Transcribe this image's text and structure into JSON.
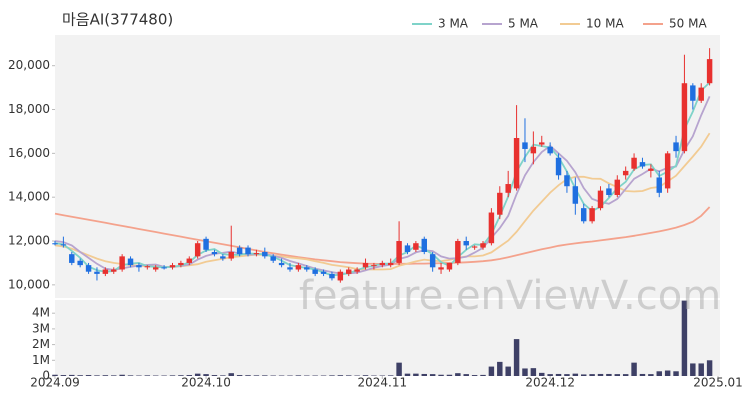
{
  "chart_data": {
    "type": "candlestick",
    "title": "마음AI(377480)",
    "x": [
      0,
      1,
      2,
      3,
      4,
      5,
      6,
      7,
      8,
      9,
      10,
      11,
      12,
      13,
      14,
      15,
      16,
      17,
      18,
      19,
      20,
      21,
      22,
      23,
      24,
      25,
      26,
      27,
      28,
      29,
      30,
      31,
      32,
      33,
      34,
      35,
      36,
      37,
      38,
      39,
      40,
      41,
      42,
      43,
      44,
      45,
      46,
      47,
      48,
      49,
      50,
      51,
      52,
      53,
      54,
      55,
      56,
      57,
      58,
      59,
      60,
      61,
      62,
      63,
      64,
      65,
      66,
      67,
      68,
      69,
      70,
      71,
      72,
      73,
      74,
      75,
      76,
      77,
      78
    ],
    "xlim": [
      0,
      79
    ],
    "xticks": [
      {
        "value": 0,
        "label": "2024.09"
      },
      {
        "value": 18,
        "label": "2024.10"
      },
      {
        "value": 39,
        "label": "2024.11"
      },
      {
        "value": 59,
        "label": "2024.12"
      },
      {
        "value": 79,
        "label": "2025.01"
      }
    ],
    "ylim": [
      9400,
      21400
    ],
    "yticks": [
      {
        "value": 10000,
        "label": "10,000"
      },
      {
        "value": 12000,
        "label": "12,000"
      },
      {
        "value": 14000,
        "label": "14,000"
      },
      {
        "value": 16000,
        "label": "16,000"
      },
      {
        "value": 18000,
        "label": "18,000"
      },
      {
        "value": 20000,
        "label": "20,000"
      }
    ],
    "up_color": "#e8312f",
    "down_color": "#1f6fe0",
    "open": [
      11900,
      11850,
      11400,
      11100,
      10900,
      10600,
      10500,
      10600,
      10700,
      11200,
      10900,
      10800,
      10700,
      10800,
      10800,
      10900,
      11000,
      11300,
      12100,
      11500,
      11300,
      11200,
      11700,
      11700,
      11400,
      11500,
      11300,
      11000,
      10800,
      10700,
      10800,
      10700,
      10600,
      10500,
      10200,
      10500,
      10600,
      10800,
      10900,
      10900,
      10900,
      11000,
      11800,
      11600,
      12100,
      11400,
      10700,
      10700,
      11000,
      12000,
      11700,
      11700,
      11900,
      13200,
      14200,
      14400,
      16500,
      16000,
      16400,
      16300,
      15800,
      15000,
      14500,
      13500,
      12900,
      13500,
      14400,
      14100,
      15000,
      15300,
      15600,
      15200,
      14900,
      14400,
      16500,
      16100,
      19100,
      18400,
      19200
    ],
    "high": [
      12000,
      12200,
      11500,
      11200,
      11000,
      10800,
      10800,
      10800,
      11400,
      11300,
      11000,
      10900,
      10900,
      10900,
      11000,
      11100,
      11300,
      12000,
      12200,
      11600,
      11400,
      12700,
      11800,
      11800,
      11600,
      11700,
      11400,
      11200,
      11000,
      11000,
      10900,
      10800,
      10700,
      10600,
      10700,
      10800,
      10800,
      11200,
      11000,
      11100,
      11200,
      12900,
      11900,
      12000,
      12200,
      11500,
      11000,
      11000,
      12100,
      12200,
      11800,
      12000,
      13500,
      14500,
      15200,
      18200,
      17600,
      17000,
      16800,
      16500,
      16000,
      15200,
      14900,
      13700,
      13600,
      14500,
      14600,
      15000,
      15400,
      16000,
      15800,
      15500,
      15200,
      16100,
      16800,
      20500,
      19200,
      19200,
      20800
    ],
    "low": [
      11800,
      11700,
      10900,
      10800,
      10500,
      10200,
      10400,
      10500,
      10600,
      10800,
      10600,
      10700,
      10600,
      10700,
      10700,
      10800,
      10900,
      11200,
      11500,
      11300,
      11100,
      11100,
      11300,
      11300,
      11300,
      11200,
      11000,
      10800,
      10600,
      10600,
      10600,
      10400,
      10400,
      10200,
      10100,
      10400,
      10500,
      10700,
      10700,
      10800,
      10800,
      10900,
      11400,
      11500,
      11400,
      10600,
      10500,
      10600,
      10900,
      11600,
      11600,
      11600,
      11800,
      13000,
      14000,
      14300,
      15600,
      15500,
      16300,
      15900,
      14800,
      14200,
      13200,
      12800,
      12800,
      13400,
      14000,
      14000,
      14800,
      15200,
      15300,
      14900,
      14000,
      14200,
      15800,
      16000,
      18000,
      18300,
      19100
    ],
    "close": [
      11850,
      11800,
      11000,
      10900,
      10600,
      10500,
      10700,
      10700,
      11300,
      10900,
      10800,
      10850,
      10800,
      10750,
      10900,
      11000,
      11200,
      11900,
      11600,
      11400,
      11200,
      11500,
      11400,
      11400,
      11450,
      11300,
      11100,
      10900,
      10700,
      10900,
      10700,
      10500,
      10500,
      10300,
      10600,
      10700,
      10700,
      11000,
      10900,
      11000,
      11000,
      12000,
      11500,
      11900,
      11500,
      10800,
      10800,
      11000,
      12000,
      11800,
      11750,
      11900,
      13300,
      14200,
      14600,
      16700,
      16200,
      16300,
      16500,
      16000,
      15000,
      14500,
      13700,
      12900,
      13500,
      14300,
      14100,
      14800,
      15200,
      15800,
      15400,
      15300,
      14200,
      16000,
      16100,
      19200,
      18400,
      19000,
      20300
    ],
    "legend": "top-right",
    "series": [
      {
        "name": "3 MA",
        "color": "#7fd3c9",
        "values": [
          11900,
          11850,
          11550,
          11233,
          10833,
          10667,
          10600,
          10633,
          10900,
          10967,
          11000,
          10850,
          10817,
          10800,
          10817,
          10883,
          11033,
          11367,
          11567,
          11633,
          11400,
          11367,
          11367,
          11433,
          11417,
          11383,
          11283,
          11100,
          10900,
          10833,
          10767,
          10700,
          10567,
          10433,
          10467,
          10533,
          10667,
          10800,
          10867,
          10967,
          10967,
          11333,
          11500,
          11800,
          11633,
          11400,
          11033,
          10867,
          11267,
          11600,
          11850,
          11817,
          12317,
          13133,
          14033,
          15167,
          15833,
          16400,
          16333,
          16267,
          15833,
          15167,
          14400,
          13700,
          13367,
          13567,
          13967,
          14400,
          14700,
          15267,
          15467,
          15500,
          14967,
          15167,
          15433,
          17100,
          17900,
          18867,
          19233
        ]
      },
      {
        "name": "5 MA",
        "color": "#b7a4cf",
        "values": [
          12000,
          11950,
          11800,
          11500,
          11230,
          10960,
          10740,
          10680,
          10760,
          10820,
          10880,
          10910,
          10930,
          10820,
          10820,
          10860,
          10930,
          11150,
          11320,
          11420,
          11460,
          11520,
          11420,
          11380,
          11390,
          11410,
          11330,
          11230,
          11090,
          10980,
          10860,
          10740,
          10660,
          10580,
          10520,
          10520,
          10560,
          10660,
          10780,
          10860,
          10920,
          11180,
          11280,
          11480,
          11580,
          11540,
          11300,
          11200,
          11220,
          11280,
          11470,
          11690,
          12150,
          12590,
          13150,
          14140,
          15000,
          15600,
          16060,
          16340,
          16000,
          15660,
          15140,
          14420,
          13920,
          13780,
          13700,
          13920,
          14380,
          14840,
          15060,
          15300,
          15180,
          15340,
          15400,
          16160,
          16780,
          17740,
          18600
        ]
      },
      {
        "name": "10 MA",
        "color": "#f2cb93",
        "values": [
          11800,
          11750,
          11650,
          11500,
          11350,
          11200,
          11080,
          11000,
          10950,
          10900,
          10880,
          10850,
          10830,
          10820,
          10820,
          10850,
          10890,
          10940,
          11050,
          11120,
          11190,
          11260,
          11300,
          11340,
          11380,
          11360,
          11320,
          11300,
          11250,
          11210,
          11160,
          11080,
          11000,
          10910,
          10860,
          10800,
          10720,
          10700,
          10700,
          10700,
          10720,
          10870,
          10970,
          11070,
          11150,
          11100,
          11080,
          11140,
          11230,
          11300,
          11300,
          11340,
          11480,
          11750,
          12020,
          12420,
          12910,
          13390,
          13800,
          14210,
          14540,
          14820,
          14930,
          14930,
          14850,
          14840,
          14630,
          14460,
          14280,
          14260,
          14280,
          14420,
          14470,
          14720,
          14980,
          15420,
          15850,
          16310,
          16920
        ]
      },
      {
        "name": "50 MA",
        "color": "#f4a28c",
        "values": [
          13250,
          13180,
          13110,
          13040,
          12970,
          12900,
          12830,
          12760,
          12690,
          12620,
          12550,
          12480,
          12410,
          12340,
          12270,
          12200,
          12130,
          12060,
          11990,
          11920,
          11850,
          11780,
          11710,
          11640,
          11570,
          11500,
          11440,
          11380,
          11320,
          11260,
          11210,
          11160,
          11120,
          11080,
          11040,
          11010,
          10990,
          10970,
          10960,
          10950,
          10950,
          10960,
          10960,
          10970,
          10970,
          10980,
          10990,
          11000,
          11010,
          11030,
          11050,
          11080,
          11120,
          11180,
          11260,
          11350,
          11440,
          11530,
          11620,
          11700,
          11780,
          11840,
          11890,
          11940,
          11980,
          12030,
          12080,
          12130,
          12180,
          12240,
          12300,
          12370,
          12440,
          12520,
          12610,
          12730,
          12880,
          13150,
          13550
        ]
      }
    ],
    "volume": {
      "type": "bar",
      "color": "#3e4066",
      "values": [
        80000,
        60000,
        70000,
        50000,
        60000,
        40000,
        50000,
        40000,
        80000,
        40000,
        30000,
        40000,
        30000,
        30000,
        40000,
        50000,
        60000,
        150000,
        120000,
        60000,
        40000,
        180000,
        60000,
        50000,
        40000,
        40000,
        30000,
        30000,
        30000,
        40000,
        30000,
        30000,
        30000,
        40000,
        50000,
        40000,
        30000,
        50000,
        30000,
        30000,
        40000,
        850000,
        150000,
        150000,
        130000,
        120000,
        80000,
        80000,
        180000,
        120000,
        60000,
        70000,
        600000,
        900000,
        600000,
        2350000,
        480000,
        500000,
        200000,
        120000,
        130000,
        120000,
        150000,
        100000,
        120000,
        130000,
        130000,
        120000,
        120000,
        850000,
        130000,
        120000,
        300000,
        350000,
        300000,
        4800000,
        800000,
        800000,
        1000000
      ],
      "ylim": [
        0,
        4840000
      ],
      "yticks": [
        0,
        {
          "value": 1000000,
          "label": "1M"
        },
        {
          "value": 2000000,
          "label": "2M"
        },
        {
          "value": 3000000,
          "label": "3M"
        },
        {
          "value": 4000000,
          "label": "4M"
        }
      ]
    }
  },
  "watermark": "feature.enViewV.com"
}
